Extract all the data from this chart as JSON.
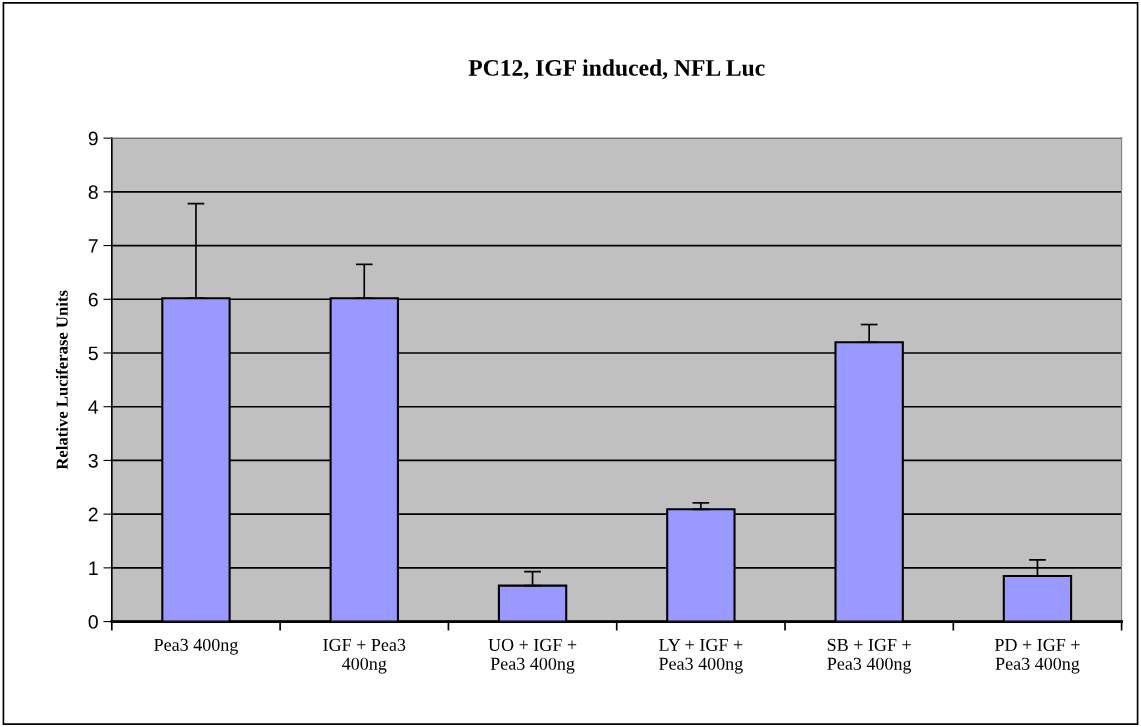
{
  "chart_data": {
    "type": "bar",
    "title": "PC12, IGF induced, NFL Luc",
    "ylabel": "Relative Luciferase Units",
    "categories": [
      "Pea3 400ng",
      "IGF + Pea3\n400ng",
      "UO + IGF +\nPea3 400ng",
      "LY + IGF +\nPea3 400ng",
      "SB + IGF +\nPea3 400ng",
      "PD + IGF +\nPea3 400ng"
    ],
    "values": [
      6.02,
      6.02,
      0.67,
      2.09,
      5.2,
      0.85
    ],
    "errors": [
      [
        6.02,
        7.78
      ],
      [
        6.02,
        6.65
      ],
      [
        0.67,
        0.93
      ],
      [
        2.09,
        2.21
      ],
      [
        5.2,
        5.53
      ],
      [
        0.85,
        1.15
      ]
    ],
    "color": "#9999ff",
    "ylim": [
      0,
      9
    ],
    "yticks": [
      0,
      1,
      2,
      3,
      4,
      5,
      6,
      7,
      8,
      9
    ],
    "grid": "y",
    "legend": false
  }
}
